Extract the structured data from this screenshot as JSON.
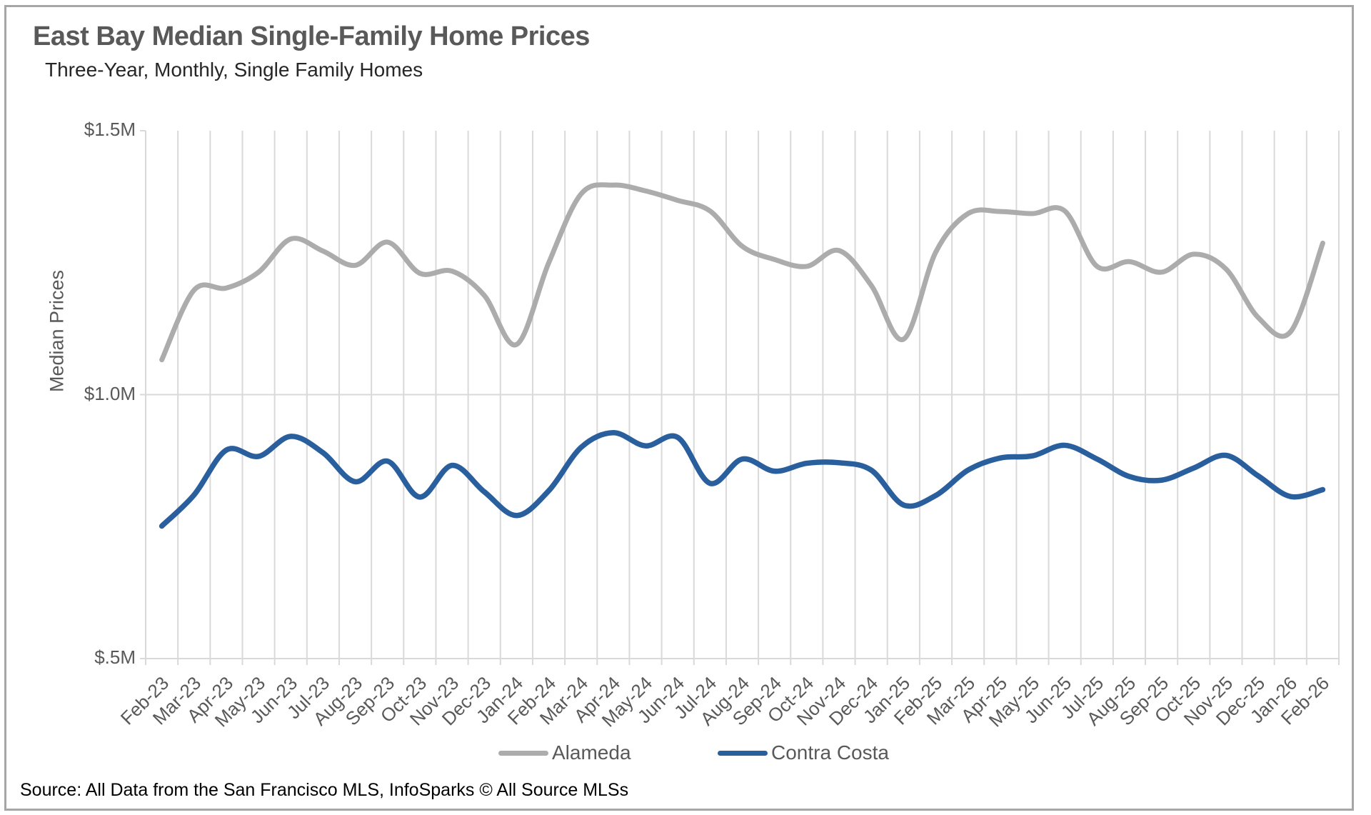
{
  "header": {
    "title": "East Bay Median Single-Family Home Prices",
    "subtitle": "Three-Year, Monthly, Single Family Homes"
  },
  "chart_data": {
    "type": "line",
    "title": "East Bay Median Single-Family Home Prices",
    "subtitle": "Three-Year, Monthly, Single Family Homes",
    "xlabel": "",
    "ylabel": "Median Prices",
    "unit": "$M",
    "ylim": [
      0.5,
      1.5
    ],
    "grid": "vertical gridlines at every month; horizontal gridline at $1.0M",
    "legend_position": "bottom-center",
    "yticks": [
      {
        "value": 1.5,
        "label": "$1.5M"
      },
      {
        "value": 1.0,
        "label": "$1.0M"
      },
      {
        "value": 0.5,
        "label": "$.5M"
      }
    ],
    "categories": [
      "Feb-23",
      "Mar-23",
      "Apr-23",
      "May-23",
      "Jun-23",
      "Jul-23",
      "Aug-23",
      "Sep-23",
      "Oct-23",
      "Nov-23",
      "Dec-23",
      "Jan-24",
      "Feb-24",
      "Mar-24",
      "Apr-24",
      "May-24",
      "Jun-24",
      "Jul-24",
      "Aug-24",
      "Sep-24",
      "Oct-24",
      "Nov-24",
      "Dec-24",
      "Jan-25",
      "Feb-25",
      "Mar-25",
      "Apr-25",
      "May-25",
      "Jun-25",
      "Jul-25",
      "Aug-25",
      "Sep-25",
      "Oct-25",
      "Nov-25",
      "Dec-25",
      "Jan-26",
      "Feb-26"
    ],
    "series": [
      {
        "name": "Alameda",
        "color": "#acacac",
        "line_width": 7,
        "values": [
          1.066,
          1.198,
          1.202,
          1.232,
          1.295,
          1.272,
          1.245,
          1.289,
          1.23,
          1.234,
          1.188,
          1.095,
          1.25,
          1.38,
          1.397,
          1.386,
          1.368,
          1.348,
          1.281,
          1.256,
          1.243,
          1.273,
          1.207,
          1.105,
          1.27,
          1.343,
          1.347,
          1.343,
          1.348,
          1.243,
          1.252,
          1.232,
          1.266,
          1.238,
          1.146,
          1.119,
          1.287
        ]
      },
      {
        "name": "Contra Costa",
        "color": "#2a5f9e",
        "line_width": 7.5,
        "values": [
          0.751,
          0.81,
          0.895,
          0.883,
          0.921,
          0.89,
          0.835,
          0.874,
          0.806,
          0.866,
          0.816,
          0.771,
          0.818,
          0.9,
          0.928,
          0.903,
          0.919,
          0.832,
          0.878,
          0.855,
          0.87,
          0.871,
          0.857,
          0.791,
          0.809,
          0.857,
          0.88,
          0.884,
          0.904,
          0.878,
          0.845,
          0.838,
          0.861,
          0.885,
          0.846,
          0.807,
          0.82
        ]
      }
    ]
  },
  "legend": {
    "items": [
      {
        "label": "Alameda",
        "color": "#acacac"
      },
      {
        "label": "Contra Costa",
        "color": "#2a5f9e"
      }
    ]
  },
  "footer": {
    "source": "Source: All Data from the San Francisco MLS, InfoSparks © All Source MLSs"
  },
  "colors": {
    "gridline": "#d9d9d9",
    "axis_text": "#595959",
    "title_text": "#595959",
    "frame": "#a6a6a6"
  }
}
